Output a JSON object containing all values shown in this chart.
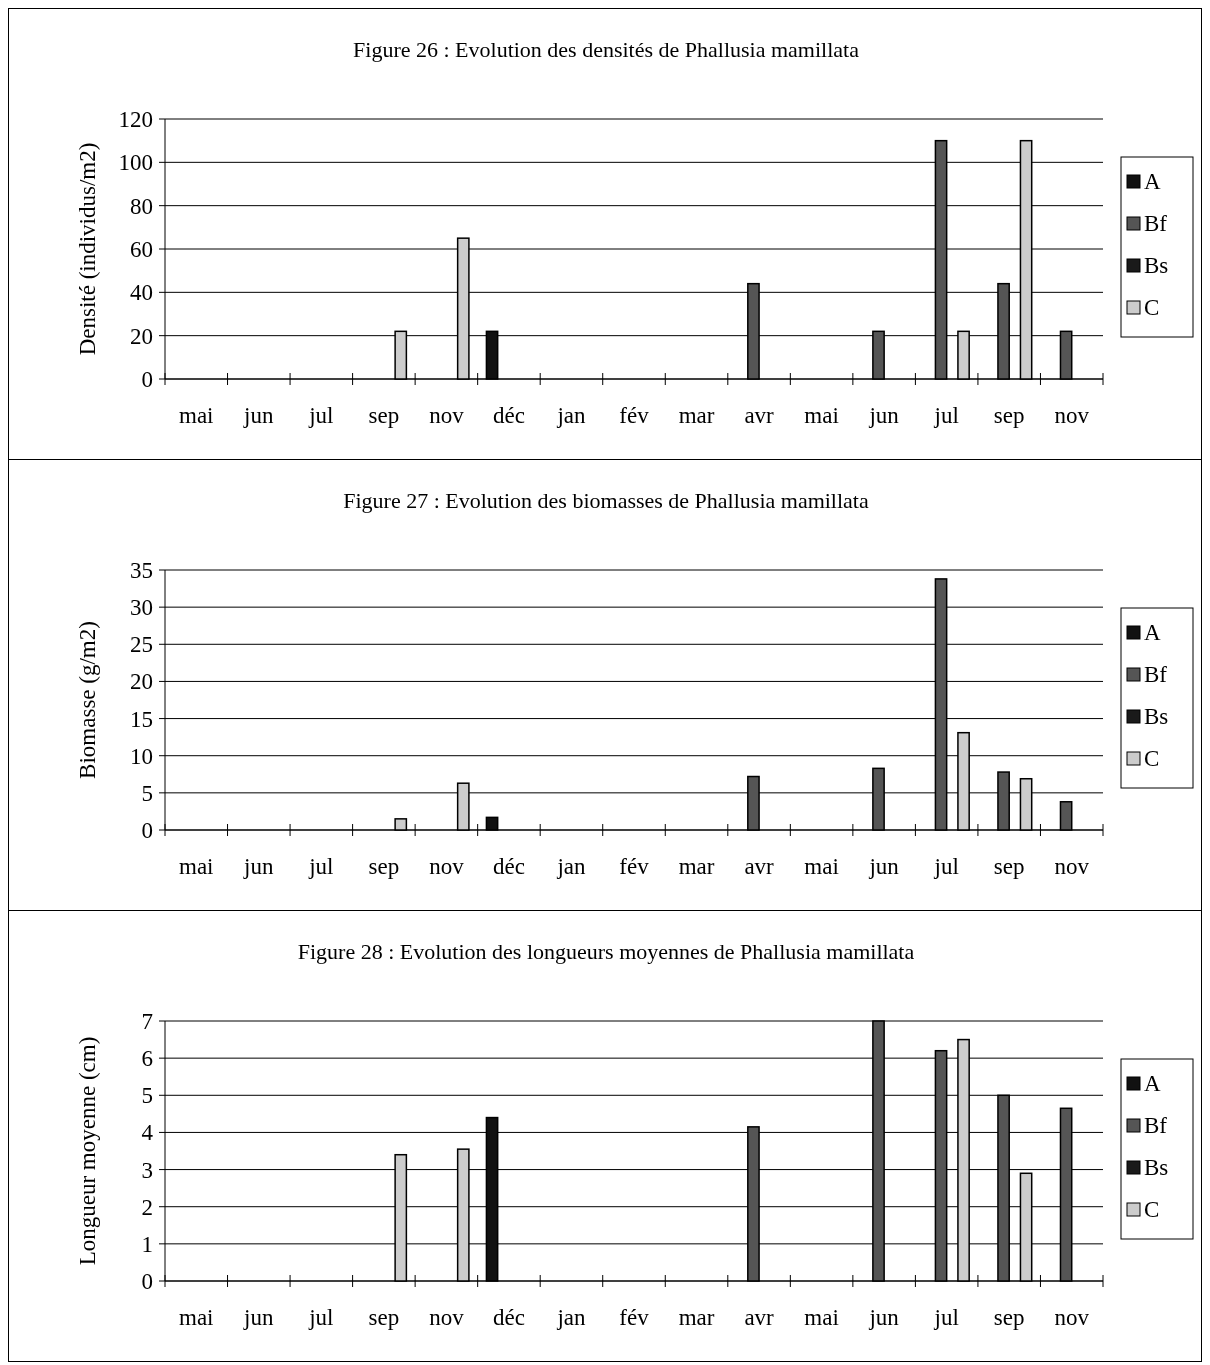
{
  "chart_data": [
    {
      "type": "bar",
      "title": "Figure 26 : Evolution des densités de Phallusia mamillata",
      "ylabel": "Densité (individus/m2)",
      "categories": [
        "mai",
        "jun",
        "jul",
        "sep",
        "nov",
        "déc",
        "jan",
        "fév",
        "mar",
        "avr",
        "mai",
        "jun",
        "jul",
        "sep",
        "nov"
      ],
      "ylim": [
        0,
        120
      ],
      "yticks": [
        0,
        20,
        40,
        60,
        80,
        100,
        120
      ],
      "grid": "y",
      "legend": "right",
      "series": [
        {
          "name": "A",
          "color": "#111111",
          "values": [
            null,
            null,
            null,
            null,
            null,
            22,
            null,
            null,
            null,
            null,
            null,
            null,
            null,
            null,
            null
          ]
        },
        {
          "name": "Bf",
          "color": "#555555",
          "values": [
            null,
            null,
            null,
            null,
            null,
            null,
            null,
            null,
            null,
            44,
            null,
            22,
            110,
            44,
            22
          ]
        },
        {
          "name": "Bs",
          "color": "#1a1a1a",
          "values": [
            null,
            null,
            null,
            null,
            null,
            null,
            null,
            null,
            null,
            null,
            null,
            null,
            null,
            null,
            null
          ]
        },
        {
          "name": "C",
          "color": "#cccccc",
          "values": [
            null,
            null,
            null,
            22,
            65,
            null,
            null,
            null,
            null,
            null,
            null,
            null,
            22,
            110,
            null
          ]
        }
      ]
    },
    {
      "type": "bar",
      "title": "Figure 27 : Evolution des biomasses de Phallusia mamillata",
      "ylabel": "Biomasse (g/m2)",
      "categories": [
        "mai",
        "jun",
        "jul",
        "sep",
        "nov",
        "déc",
        "jan",
        "fév",
        "mar",
        "avr",
        "mai",
        "jun",
        "jul",
        "sep",
        "nov"
      ],
      "ylim": [
        0,
        35
      ],
      "yticks": [
        0,
        5,
        10,
        15,
        20,
        25,
        30,
        35
      ],
      "grid": "y",
      "legend": "right",
      "series": [
        {
          "name": "A",
          "color": "#111111",
          "values": [
            null,
            null,
            null,
            null,
            null,
            1.7,
            null,
            null,
            null,
            null,
            null,
            null,
            null,
            null,
            null
          ]
        },
        {
          "name": "Bf",
          "color": "#555555",
          "values": [
            null,
            null,
            null,
            null,
            null,
            null,
            null,
            null,
            null,
            7.2,
            null,
            8.3,
            33.8,
            7.8,
            3.8
          ]
        },
        {
          "name": "Bs",
          "color": "#1a1a1a",
          "values": [
            null,
            null,
            null,
            null,
            null,
            null,
            null,
            null,
            null,
            null,
            null,
            null,
            null,
            null,
            null
          ]
        },
        {
          "name": "C",
          "color": "#cccccc",
          "values": [
            null,
            null,
            null,
            1.5,
            6.3,
            null,
            null,
            null,
            null,
            null,
            null,
            null,
            13.1,
            6.9,
            null
          ]
        }
      ]
    },
    {
      "type": "bar",
      "title": "Figure 28 : Evolution des longueurs moyennes de Phallusia mamillata",
      "ylabel": "Longueur moyenne (cm)",
      "categories": [
        "mai",
        "jun",
        "jul",
        "sep",
        "nov",
        "déc",
        "jan",
        "fév",
        "mar",
        "avr",
        "mai",
        "jun",
        "jul",
        "sep",
        "nov"
      ],
      "ylim": [
        0,
        7
      ],
      "yticks": [
        0,
        1,
        2,
        3,
        4,
        5,
        6,
        7
      ],
      "grid": "y",
      "legend": "right",
      "series": [
        {
          "name": "A",
          "color": "#111111",
          "values": [
            null,
            null,
            null,
            null,
            null,
            4.4,
            null,
            null,
            null,
            null,
            null,
            null,
            null,
            null,
            null
          ]
        },
        {
          "name": "Bf",
          "color": "#555555",
          "values": [
            null,
            null,
            null,
            null,
            null,
            null,
            null,
            null,
            null,
            4.15,
            null,
            7,
            6.2,
            5,
            4.65
          ]
        },
        {
          "name": "Bs",
          "color": "#1a1a1a",
          "values": [
            null,
            null,
            null,
            null,
            null,
            null,
            null,
            null,
            null,
            null,
            null,
            null,
            null,
            null,
            null
          ]
        },
        {
          "name": "C",
          "color": "#cccccc",
          "values": [
            null,
            null,
            null,
            3.4,
            3.55,
            null,
            null,
            null,
            null,
            null,
            null,
            null,
            6.5,
            2.9,
            null
          ]
        }
      ]
    }
  ]
}
